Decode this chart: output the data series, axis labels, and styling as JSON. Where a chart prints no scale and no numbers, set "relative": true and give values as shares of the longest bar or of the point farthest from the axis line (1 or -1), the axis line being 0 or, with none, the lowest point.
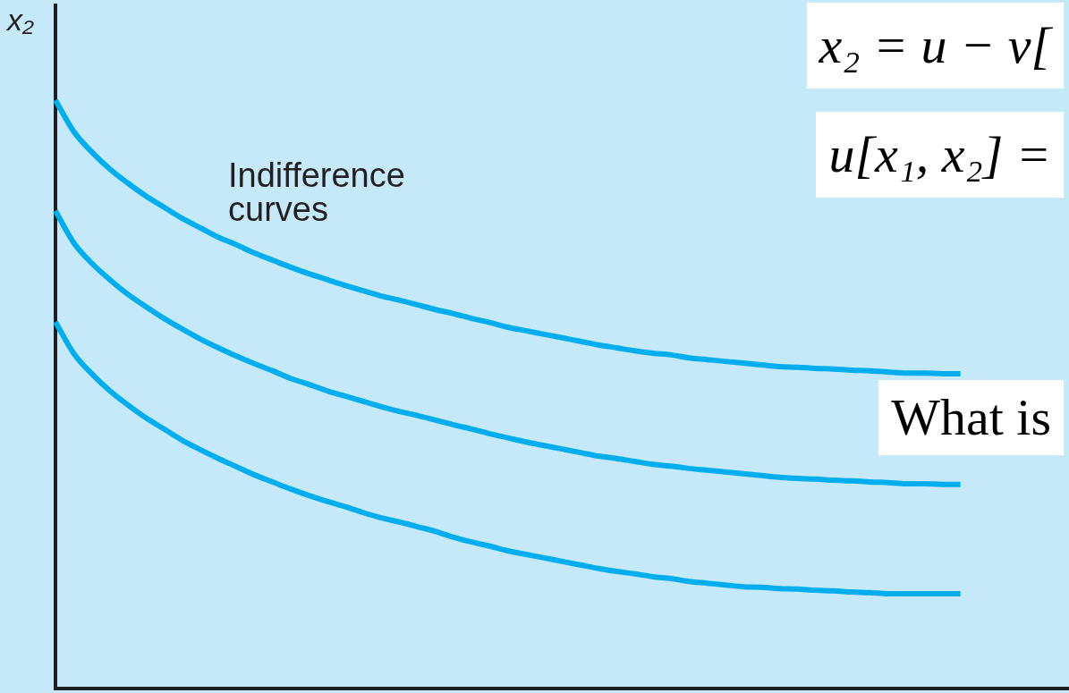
{
  "chart_data": {
    "type": "line",
    "relative": true,
    "ylabel": "x₂",
    "categories": [
      null,
      null,
      null,
      null,
      null,
      null,
      null,
      null,
      null,
      null,
      null,
      null,
      null,
      null,
      null,
      null,
      null,
      null,
      null,
      null,
      null,
      null,
      null,
      null,
      null,
      null,
      null,
      null,
      null,
      null,
      null,
      null,
      null,
      null,
      null,
      null,
      null,
      null,
      null,
      null,
      null,
      null,
      null,
      null,
      null,
      null,
      null,
      null,
      null,
      null,
      null,
      null,
      null,
      null,
      null,
      null,
      null
    ],
    "series": [
      {
        "color": "#00aeef",
        "values": [
          1.0,
          0.947,
          0.912,
          0.883,
          0.859,
          0.837,
          0.818,
          0.799,
          0.783,
          0.767,
          0.754,
          0.74,
          0.728,
          0.716,
          0.705,
          0.695,
          0.685,
          0.676,
          0.667,
          0.66,
          0.652,
          0.644,
          0.637,
          0.629,
          0.622,
          0.614,
          0.608,
          0.602,
          0.596,
          0.59,
          0.584,
          0.579,
          0.574,
          0.57,
          0.567,
          0.562,
          0.559,
          0.556,
          0.553,
          0.55,
          0.547,
          0.546,
          0.544,
          0.543,
          0.541,
          0.54,
          0.538,
          0.536,
          0.536,
          0.535,
          0.535,
          null,
          null,
          null,
          null,
          null,
          null
        ]
      },
      {
        "color": "#00aeef",
        "values": [
          0.812,
          0.758,
          0.723,
          0.695,
          0.67,
          0.649,
          0.629,
          0.611,
          0.594,
          0.579,
          0.565,
          0.552,
          0.54,
          0.527,
          0.517,
          0.506,
          0.497,
          0.488,
          0.479,
          0.471,
          0.464,
          0.456,
          0.448,
          0.441,
          0.433,
          0.426,
          0.419,
          0.413,
          0.407,
          0.401,
          0.395,
          0.391,
          0.386,
          0.381,
          0.378,
          0.374,
          0.371,
          0.368,
          0.365,
          0.362,
          0.359,
          0.357,
          0.356,
          0.354,
          0.353,
          0.351,
          0.35,
          0.348,
          0.348,
          0.347,
          0.347,
          null,
          null,
          null,
          null,
          null,
          null
        ]
      },
      {
        "color": "#00aeef",
        "values": [
          0.623,
          0.57,
          0.535,
          0.506,
          0.482,
          0.46,
          0.441,
          0.422,
          0.406,
          0.391,
          0.377,
          0.363,
          0.351,
          0.339,
          0.328,
          0.318,
          0.309,
          0.299,
          0.29,
          0.283,
          0.275,
          0.267,
          0.257,
          0.249,
          0.242,
          0.234,
          0.228,
          0.222,
          0.216,
          0.21,
          0.204,
          0.199,
          0.195,
          0.19,
          0.187,
          0.182,
          0.179,
          0.176,
          0.173,
          0.172,
          0.17,
          0.169,
          0.167,
          0.166,
          0.164,
          0.163,
          0.161,
          0.161,
          0.161,
          0.161,
          0.161,
          null,
          null,
          null,
          null,
          null,
          null
        ]
      }
    ],
    "annotations": [
      "Indifference curves",
      "x₂ = u − v[",
      "u[x₁, x₂] =",
      "What is"
    ]
  }
}
